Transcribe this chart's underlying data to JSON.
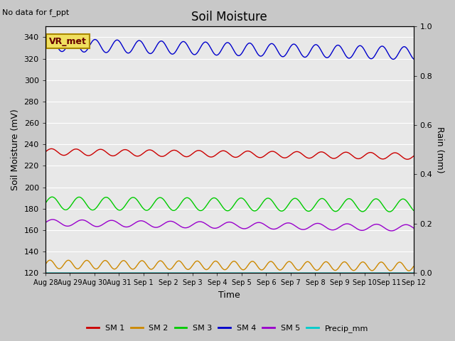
{
  "title": "Soil Moisture",
  "top_left_text": "No data for f_ppt",
  "ylabel_left": "Soil Moisture (mV)",
  "ylabel_right": "Rain (mm)",
  "xlabel": "Time",
  "annotation_text": "VR_met",
  "ylim_left": [
    120,
    350
  ],
  "ylim_right": [
    0.0,
    1.0
  ],
  "yticks_left": [
    120,
    140,
    160,
    180,
    200,
    220,
    240,
    260,
    280,
    300,
    320,
    340
  ],
  "yticks_right": [
    0.0,
    0.2,
    0.4,
    0.6,
    0.8,
    1.0
  ],
  "fig_bg_color": "#c8c8c8",
  "plot_bg_color": "#e8e8e8",
  "series": {
    "SM1": {
      "color": "#cc0000",
      "base": 233,
      "amplitude": 3,
      "period": 1.0,
      "trend": -4
    },
    "SM2": {
      "color": "#cc8800",
      "base": 128,
      "amplitude": 4,
      "period": 0.75,
      "trend": -2
    },
    "SM3": {
      "color": "#00cc00",
      "base": 185,
      "amplitude": 6,
      "period": 1.1,
      "trend": -2
    },
    "SM4": {
      "color": "#0000cc",
      "base": 333,
      "amplitude": 6,
      "period": 0.9,
      "trend": -8
    },
    "SM5": {
      "color": "#9900cc",
      "base": 167,
      "amplitude": 3,
      "period": 1.2,
      "trend": -5
    },
    "Precip": {
      "color": "#00cccc",
      "value": 120
    }
  },
  "x_tick_labels": [
    "Aug 28",
    "Aug 29",
    "Aug 30",
    "Aug 31",
    "Sep 1",
    "Sep 2",
    "Sep 3",
    "Sep 4",
    "Sep 5",
    "Sep 6",
    "Sep 7",
    "Sep 8",
    "Sep 9",
    "Sep 10",
    "Sep 11",
    "Sep 12"
  ],
  "legend_entries": [
    {
      "label": "SM 1",
      "color": "#cc0000"
    },
    {
      "label": "SM 2",
      "color": "#cc8800"
    },
    {
      "label": "SM 3",
      "color": "#00cc00"
    },
    {
      "label": "SM 4",
      "color": "#0000cc"
    },
    {
      "label": "SM 5",
      "color": "#9900cc"
    },
    {
      "label": "Precip_mm",
      "color": "#00cccc"
    }
  ]
}
